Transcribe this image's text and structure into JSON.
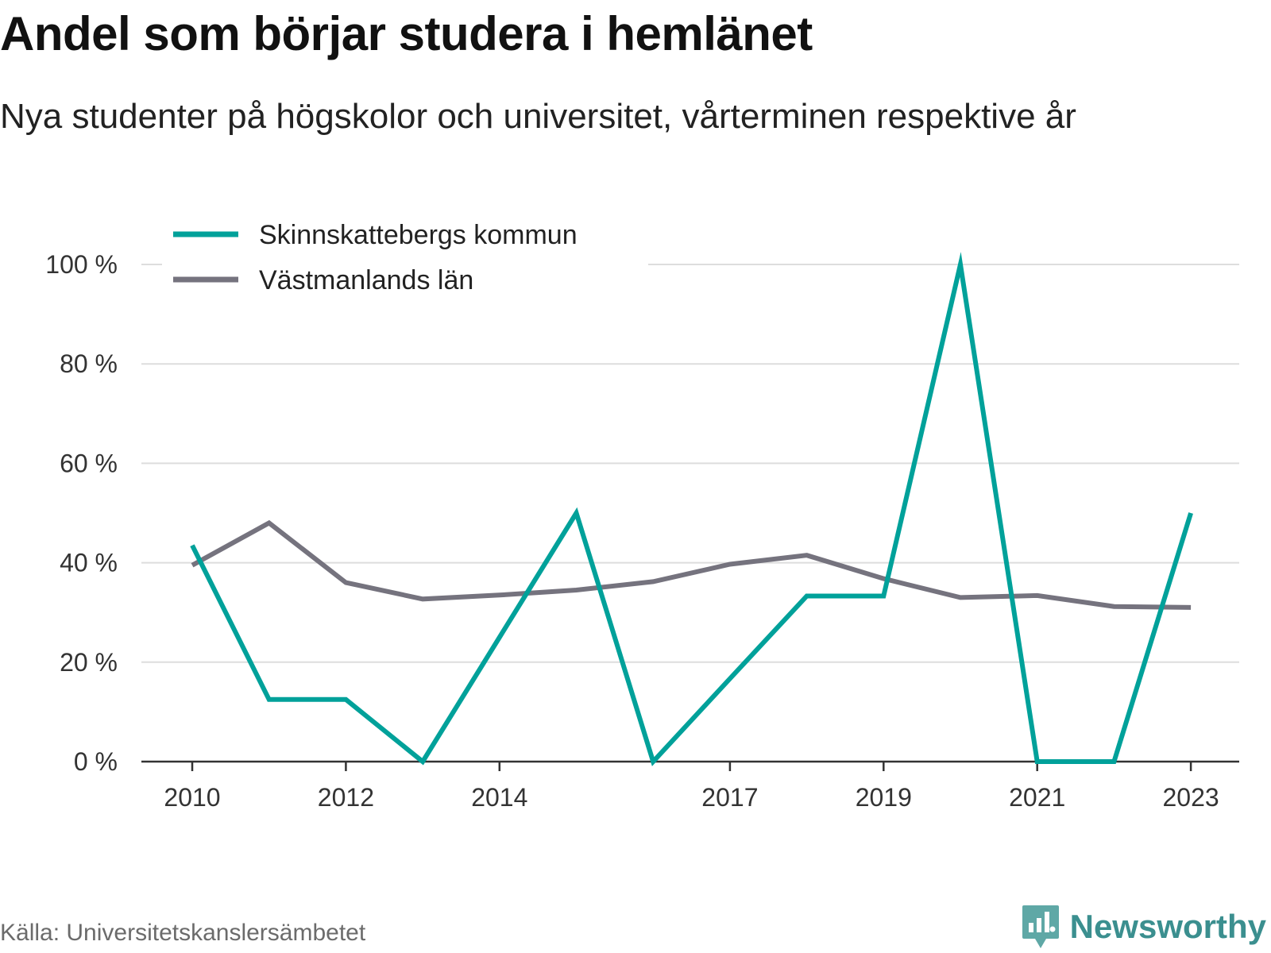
{
  "title": "Andel som börjar studera i hemlänet",
  "subtitle": "Nya studenter på högskolor och universitet, vårterminen respektive år",
  "source": "Källa: Universitetskanslersämbetet",
  "brand": {
    "name": "Newsworthy",
    "icon": "newsworthy-chart-bubble-icon",
    "color": "#3b8f8f"
  },
  "chart_data": {
    "type": "line",
    "x": [
      2010,
      2011,
      2012,
      2013,
      2014,
      2015,
      2016,
      2017,
      2018,
      2019,
      2020,
      2021,
      2022,
      2023
    ],
    "x_ticks": [
      "2010",
      "2012",
      "2014",
      "2017",
      "2019",
      "2021",
      "2023"
    ],
    "y_ticks": [
      "0 %",
      "20 %",
      "40 %",
      "60 %",
      "80 %",
      "100 %"
    ],
    "ylim": [
      0,
      100
    ],
    "grid": true,
    "legend_placement": "top-left",
    "series": [
      {
        "name": "Skinnskattebergs kommun",
        "color": "#00a19a",
        "values": [
          43.5,
          12.5,
          12.5,
          0,
          25,
          50,
          0,
          16.7,
          33.3,
          33.3,
          100,
          0,
          0,
          50
        ]
      },
      {
        "name": "Västmanlands län",
        "color": "#75737e",
        "values": [
          39.5,
          48,
          36,
          32.7,
          33.5,
          34.5,
          36.2,
          39.7,
          41.5,
          36.8,
          33,
          33.4,
          31.2,
          31
        ]
      }
    ]
  }
}
